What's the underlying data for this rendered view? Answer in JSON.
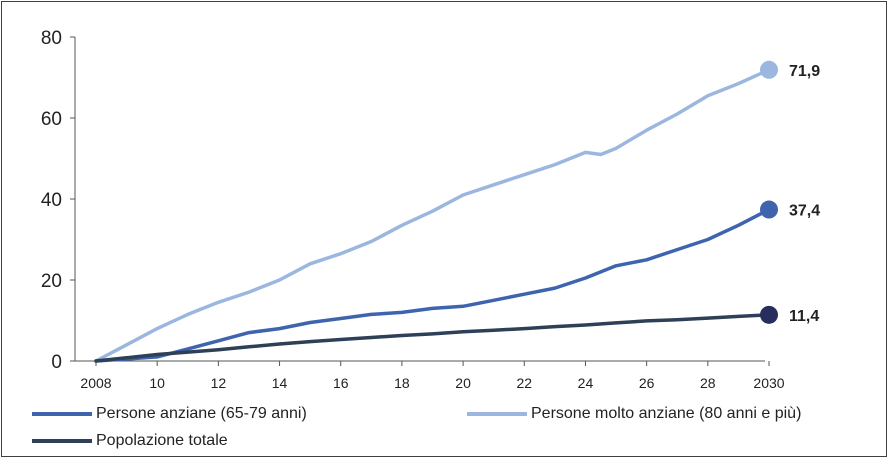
{
  "chart_data": {
    "type": "line",
    "title": "",
    "xlabel": "",
    "ylabel": "",
    "xlim": [
      2008,
      2030
    ],
    "ylim": [
      0,
      80
    ],
    "yticks": [
      0,
      20,
      40,
      60,
      80
    ],
    "ytick_labels": [
      "0",
      "20",
      "40",
      "60",
      "80"
    ],
    "xticks": [
      2008,
      2010,
      2012,
      2014,
      2016,
      2018,
      2020,
      2022,
      2024,
      2026,
      2028,
      2030
    ],
    "xtick_labels": [
      "2008",
      "10",
      "12",
      "14",
      "16",
      "18",
      "20",
      "22",
      "24",
      "26",
      "28",
      "2030"
    ],
    "grid": false,
    "legend_position": "bottom",
    "series": [
      {
        "name": "Persone anziane (65-79 anni)",
        "color": "#3e64ae",
        "end_label": "37,4",
        "x": [
          2008,
          2009,
          2010,
          2011,
          2012,
          2013,
          2014,
          2015,
          2016,
          2017,
          2018,
          2019,
          2020,
          2021,
          2022,
          2023,
          2024,
          2025,
          2026,
          2027,
          2028,
          2029,
          2030
        ],
        "y": [
          0,
          0.5,
          1.0,
          3.0,
          5.0,
          7.0,
          8.0,
          9.5,
          10.5,
          11.5,
          12.0,
          13.0,
          13.5,
          15.0,
          16.5,
          18.0,
          20.5,
          23.5,
          25.0,
          27.5,
          30.0,
          33.5,
          37.4
        ]
      },
      {
        "name": "Persone molto anziane (80 anni e più)",
        "color": "#9bb7df",
        "end_label": "71,9",
        "x": [
          2008,
          2009,
          2010,
          2011,
          2012,
          2013,
          2014,
          2015,
          2016,
          2017,
          2018,
          2019,
          2020,
          2021,
          2022,
          2023,
          2024,
          2024.5,
          2025,
          2026,
          2027,
          2028,
          2029,
          2030
        ],
        "y": [
          0,
          4.0,
          8.0,
          11.5,
          14.5,
          17.0,
          20.0,
          24.0,
          26.5,
          29.5,
          33.5,
          37.0,
          41.0,
          43.5,
          46.0,
          48.5,
          51.5,
          51.0,
          52.5,
          57.0,
          61.0,
          65.5,
          68.5,
          71.9
        ]
      },
      {
        "name": "Popolazione totale",
        "color": "#2d4058",
        "end_label": "11,4",
        "x": [
          2008,
          2009,
          2010,
          2011,
          2012,
          2013,
          2014,
          2015,
          2016,
          2017,
          2018,
          2019,
          2020,
          2021,
          2022,
          2023,
          2024,
          2025,
          2026,
          2027,
          2028,
          2029,
          2030
        ],
        "y": [
          0,
          0.8,
          1.6,
          2.2,
          2.8,
          3.5,
          4.2,
          4.8,
          5.3,
          5.8,
          6.3,
          6.7,
          7.2,
          7.6,
          8.0,
          8.5,
          8.9,
          9.4,
          9.9,
          10.2,
          10.6,
          11.0,
          11.4
        ]
      }
    ],
    "end_marker_colors": [
      "#3e64ae",
      "#9bb7df",
      "#272d5c"
    ]
  }
}
